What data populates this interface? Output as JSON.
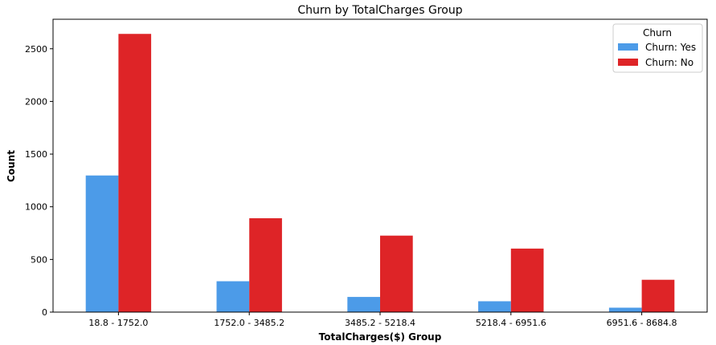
{
  "chart_data": {
    "type": "bar",
    "title": "Churn by TotalCharges Group",
    "xlabel": "TotalCharges($) Group",
    "ylabel": "Count",
    "categories": [
      "18.8 - 1752.0",
      "1752.0 - 3485.2",
      "3485.2 - 5218.4",
      "5218.4 - 6951.6",
      "6951.6 - 8684.8"
    ],
    "series": [
      {
        "name": "Churn: Yes",
        "color": "#4c9be8",
        "values": [
          1297,
          293,
          144,
          103,
          42
        ]
      },
      {
        "name": "Churn: No",
        "color": "#de2427",
        "values": [
          2641,
          891,
          726,
          603,
          307
        ]
      }
    ],
    "ylim": [
      0,
      2780
    ],
    "yticks": [
      0,
      500,
      1000,
      1500,
      2000,
      2500
    ],
    "legend": {
      "title": "Churn",
      "position": "top-right"
    },
    "grid": false
  }
}
